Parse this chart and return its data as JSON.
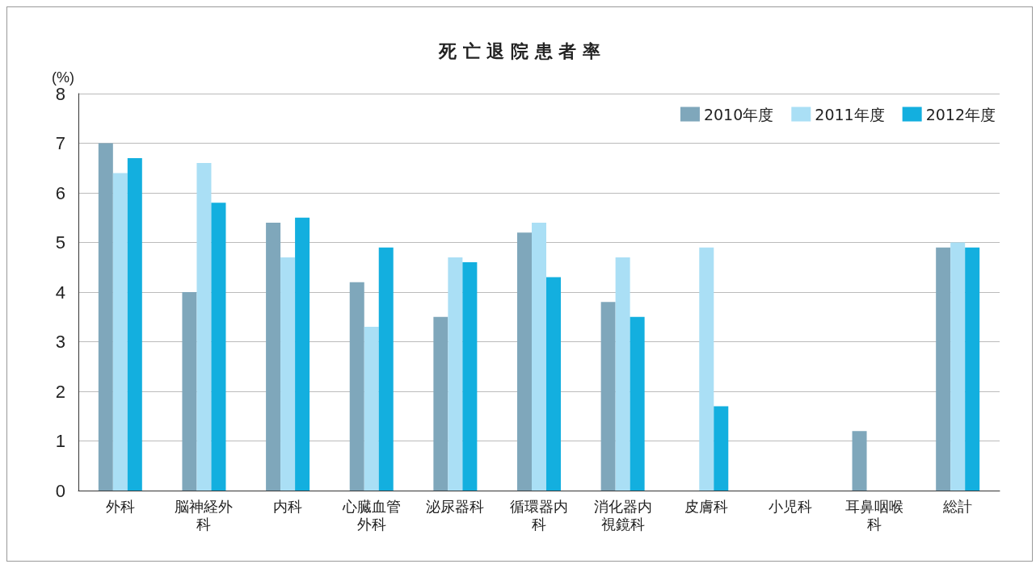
{
  "chart_data": {
    "type": "bar",
    "title": "死 亡 退 院 患 者 率",
    "ylabel": "(%)",
    "categories": [
      "外科",
      "脳神経外科",
      "内科",
      "心臓血管外科",
      "泌尿器科",
      "循環器内科",
      "消化器内視鏡科",
      "皮膚科",
      "小児科",
      "耳鼻咽喉科",
      "総計"
    ],
    "series": [
      {
        "name": "2010年度",
        "color": "#7fa7bb",
        "values": [
          7.0,
          4.0,
          5.4,
          4.2,
          3.5,
          5.2,
          3.8,
          null,
          null,
          1.2,
          4.9
        ]
      },
      {
        "name": "2011年度",
        "color": "#aadff5",
        "values": [
          6.4,
          6.6,
          4.7,
          3.3,
          4.7,
          5.4,
          4.7,
          4.9,
          null,
          null,
          5.0
        ]
      },
      {
        "name": "2012年度",
        "color": "#13afdf",
        "values": [
          6.7,
          5.8,
          5.5,
          4.9,
          4.6,
          4.3,
          3.5,
          1.7,
          null,
          null,
          4.9
        ]
      }
    ],
    "ylim": [
      0,
      8
    ],
    "yticks": [
      0,
      1,
      2,
      3,
      4,
      5,
      6,
      7,
      8
    ],
    "grid": "y",
    "legend": "top right"
  }
}
